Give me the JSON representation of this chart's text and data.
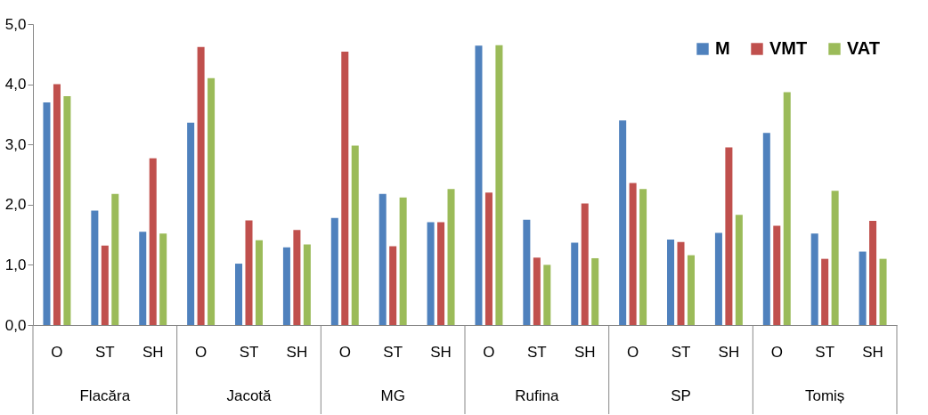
{
  "chart_data": {
    "type": "bar",
    "categories": [
      "O",
      "ST",
      "SH",
      "O",
      "ST",
      "SH",
      "O",
      "ST",
      "SH",
      "O",
      "ST",
      "SH",
      "O",
      "ST",
      "SH",
      "O",
      "ST",
      "SH"
    ],
    "annotations": [
      "Flacăra",
      "Jacotă",
      "MG",
      "Rufina",
      "SP",
      "Tomiș"
    ],
    "series": [
      {
        "name": "M",
        "color": "#4f81bd",
        "values": [
          3.7,
          1.9,
          1.55,
          3.36,
          1.02,
          1.29,
          1.78,
          2.18,
          1.71,
          4.64,
          1.75,
          1.37,
          3.4,
          1.42,
          1.53,
          3.19,
          1.52,
          1.22
        ]
      },
      {
        "name": "VMT",
        "color": "#c0504d",
        "values": [
          4.0,
          1.32,
          2.77,
          4.62,
          1.74,
          1.58,
          4.54,
          1.31,
          1.71,
          2.2,
          1.12,
          2.02,
          2.36,
          1.38,
          2.95,
          1.65,
          1.1,
          1.73
        ]
      },
      {
        "name": "VAT",
        "color": "#9bbb59",
        "values": [
          3.8,
          2.18,
          1.52,
          4.1,
          1.41,
          1.34,
          2.98,
          2.12,
          2.26,
          4.65,
          1.0,
          1.11,
          2.26,
          1.16,
          1.83,
          3.87,
          2.23,
          1.1
        ]
      }
    ],
    "ylim": [
      0,
      5
    ],
    "yticks": [
      {
        "value": 0,
        "label": "0,0"
      },
      {
        "value": 1,
        "label": "1,0"
      },
      {
        "value": 2,
        "label": "2,0"
      },
      {
        "value": 3,
        "label": "3,0"
      },
      {
        "value": 4,
        "label": "4,0"
      },
      {
        "value": 5,
        "label": "5,0"
      }
    ],
    "legend": "top right"
  }
}
